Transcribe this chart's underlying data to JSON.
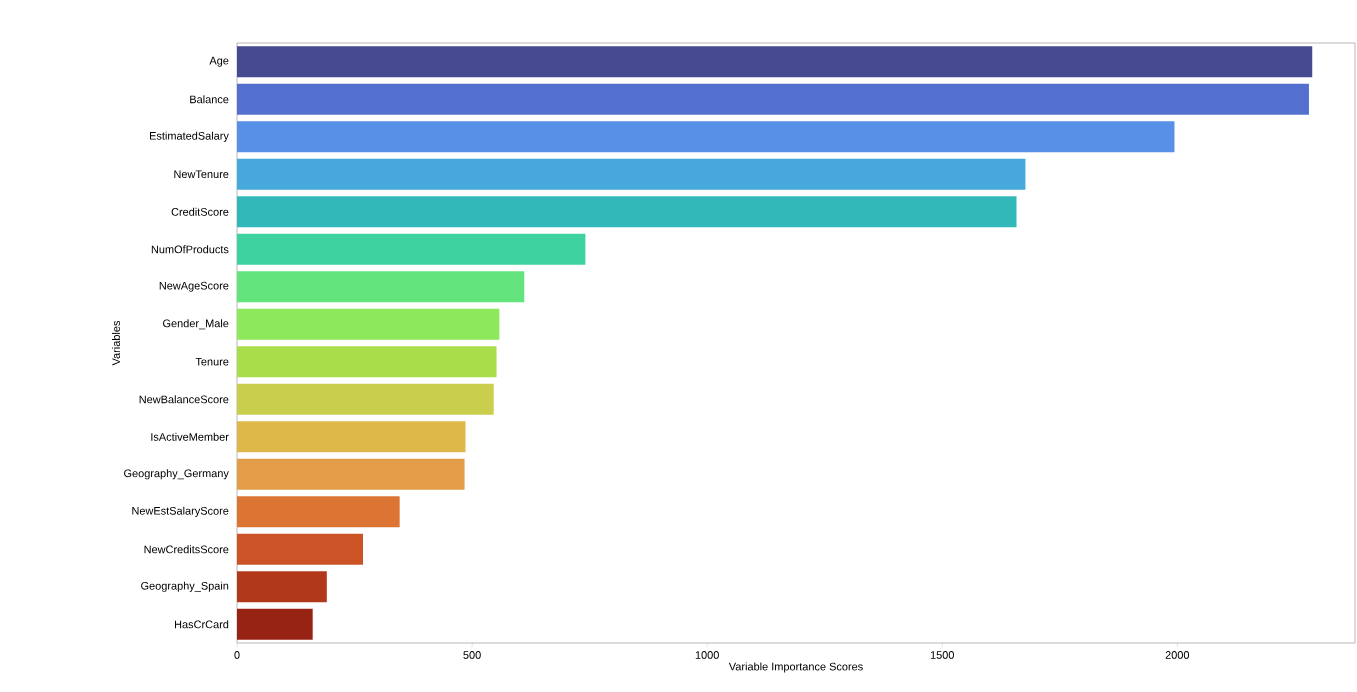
{
  "chart_data": {
    "type": "bar",
    "orientation": "horizontal",
    "xlabel": "Variable Importance Scores",
    "ylabel": "Variables",
    "categories": [
      "Age",
      "Balance",
      "EstimatedSalary",
      "NewTenure",
      "CreditScore",
      "NumOfProducts",
      "NewAgeScore",
      "Gender_Male",
      "Tenure",
      "NewBalanceScore",
      "IsActiveMember",
      "Geography_Germany",
      "NewEstSalaryScore",
      "NewCreditsScore",
      "Geography_Spain",
      "HasCrCard"
    ],
    "values": [
      2287,
      2280,
      1994,
      1677,
      1658,
      741,
      611,
      558,
      552,
      546,
      486,
      484,
      346,
      268,
      191,
      161
    ],
    "colors": [
      "#464a90",
      "#5470cf",
      "#5890e8",
      "#47a8db",
      "#32b8b8",
      "#3dd29f",
      "#63e37c",
      "#8de85c",
      "#aadd4a",
      "#c9ce4c",
      "#dfb84a",
      "#e39c47",
      "#dc7534",
      "#cc5326",
      "#b2381b",
      "#962314"
    ],
    "xlim": [
      0,
      2378
    ],
    "xticks": [
      0,
      500,
      1000,
      1500,
      2000
    ],
    "grid": false
  }
}
